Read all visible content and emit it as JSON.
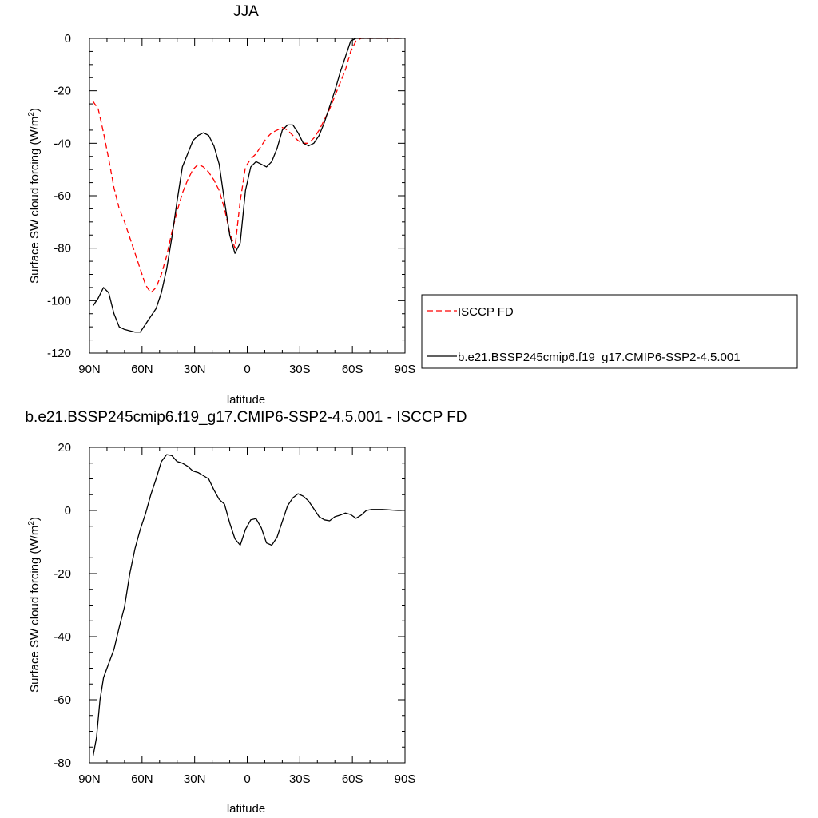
{
  "chart_data": [
    {
      "type": "line",
      "title": "JJA",
      "xlabel": "latitude",
      "ylabel": "Surface SW cloud forcing (W/m²)",
      "ylabel_main": "Surface SW cloud forcing (W/m",
      "ylabel_sup": "2",
      "ylabel_end": ")",
      "xlim": [
        90,
        -90
      ],
      "ylim": [
        -120,
        0
      ],
      "x_ticks": [
        90,
        60,
        30,
        0,
        -30,
        -60,
        -90
      ],
      "x_tick_labels": [
        "90N",
        "60N",
        "30N",
        "0",
        "30S",
        "60S",
        "90S"
      ],
      "y_ticks": [
        0,
        -20,
        -40,
        -60,
        -80,
        -100,
        -120
      ],
      "y_tick_labels": [
        "0",
        "-20",
        "-40",
        "-60",
        "-80",
        "-100",
        "-120"
      ],
      "legend_position": "right",
      "series": [
        {
          "name": "ISCCP FD",
          "color": "#ff0000",
          "dash": "dashed",
          "x": [
            88,
            85,
            82,
            79,
            76,
            73,
            70,
            67,
            64,
            61,
            58,
            55,
            52,
            49,
            46,
            43,
            40,
            37,
            34,
            31,
            28,
            25,
            22,
            19,
            16,
            13,
            10,
            7,
            4,
            1,
            -2,
            -5,
            -8,
            -11,
            -14,
            -17,
            -20,
            -23,
            -26,
            -29,
            -32,
            -35,
            -38,
            -41,
            -44,
            -47,
            -50,
            -53,
            -56,
            -59,
            -62,
            -65,
            -68,
            -71,
            -74,
            -77,
            -80,
            -83,
            -86,
            -88
          ],
          "y": [
            -24,
            -27,
            -36,
            -46,
            -57,
            -65,
            -70,
            -76,
            -82,
            -88,
            -94,
            -97,
            -95,
            -90,
            -83,
            -74,
            -66,
            -59,
            -54,
            -50,
            -48,
            -49,
            -51,
            -54,
            -58,
            -65,
            -74,
            -80,
            -62,
            -49,
            -46,
            -44,
            -41,
            -38,
            -36,
            -35,
            -34,
            -35,
            -37,
            -39,
            -40,
            -40,
            -38,
            -35,
            -31,
            -27,
            -22,
            -17,
            -12,
            -5,
            -1,
            0,
            0,
            0,
            0,
            0,
            0,
            0,
            0,
            0
          ]
        },
        {
          "name": "b.e21.BSSP245cmip6.f19_g17.CMIP6-SSP2-4.5.001",
          "color": "#000000",
          "dash": "solid",
          "x": [
            88,
            85,
            82,
            79,
            76,
            73,
            70,
            67,
            64,
            61,
            58,
            55,
            52,
            49,
            46,
            43,
            40,
            37,
            34,
            31,
            28,
            25,
            22,
            19,
            16,
            13,
            10,
            7,
            4,
            1,
            -2,
            -5,
            -8,
            -11,
            -14,
            -17,
            -20,
            -23,
            -26,
            -29,
            -32,
            -35,
            -38,
            -41,
            -44,
            -47,
            -50,
            -53,
            -56,
            -59,
            -62,
            -65,
            -68,
            -71,
            -74,
            -77,
            -80,
            -83,
            -86,
            -88
          ],
          "y": [
            -102,
            -99,
            -95,
            -97,
            -105,
            -110,
            -111,
            -111.5,
            -112,
            -112,
            -109,
            -106,
            -103,
            -97,
            -88,
            -76,
            -62,
            -49,
            -44,
            -39,
            -37,
            -36,
            -37,
            -41,
            -48,
            -62,
            -75,
            -82,
            -78,
            -58,
            -49,
            -47,
            -48,
            -49,
            -47,
            -42,
            -35,
            -33,
            -33,
            -36,
            -40,
            -41,
            -40,
            -37,
            -32,
            -26,
            -20,
            -13,
            -7,
            -1,
            0,
            0,
            0,
            0,
            0,
            0,
            0,
            0,
            0,
            0
          ]
        }
      ]
    },
    {
      "type": "line",
      "title": "b.e21.BSSP245cmip6.f19_g17.CMIP6-SSP2-4.5.001 - ISCCP FD",
      "xlabel": "latitude",
      "ylabel": "Surface SW cloud forcing (W/m²)",
      "ylabel_main": "Surface SW cloud forcing (W/m",
      "ylabel_sup": "2",
      "ylabel_end": ")",
      "xlim": [
        90,
        -90
      ],
      "ylim": [
        -80,
        20
      ],
      "x_ticks": [
        90,
        60,
        30,
        0,
        -30,
        -60,
        -90
      ],
      "x_tick_labels": [
        "90N",
        "60N",
        "30N",
        "0",
        "30S",
        "60S",
        "90S"
      ],
      "y_ticks": [
        20,
        0,
        -20,
        -40,
        -60,
        -80
      ],
      "y_tick_labels": [
        "20",
        "0",
        "-20",
        "-40",
        "-60",
        "-80"
      ],
      "series": [
        {
          "color": "#000000",
          "dash": "solid",
          "x": [
            88,
            86,
            84,
            82,
            79,
            76,
            73,
            70,
            67,
            64,
            61,
            58,
            55,
            52,
            49,
            46,
            43,
            40,
            37,
            34,
            31,
            28,
            25,
            22,
            19,
            16,
            13,
            10,
            7,
            4,
            1,
            -2,
            -5,
            -8,
            -11,
            -14,
            -17,
            -20,
            -23,
            -26,
            -29,
            -32,
            -35,
            -38,
            -41,
            -44,
            -47,
            -50,
            -53,
            -56,
            -59,
            -62,
            -65,
            -68,
            -71,
            -74,
            -77,
            -80,
            -83,
            -86,
            -88
          ],
          "y": [
            -78,
            -72,
            -60,
            -53,
            -48.5,
            -44,
            -37,
            -30.5,
            -20,
            -12,
            -6,
            -1,
            5,
            10,
            15.5,
            17.7,
            17.4,
            15.5,
            15,
            14,
            12.5,
            12,
            11,
            10,
            6.5,
            3.5,
            2,
            -4,
            -9,
            -11,
            -6,
            -3,
            -2.6,
            -5.5,
            -10.3,
            -11,
            -8.5,
            -3.5,
            1.5,
            4,
            5.3,
            4.5,
            3,
            0.5,
            -2,
            -3,
            -3.3,
            -2,
            -1.5,
            -0.8,
            -1.3,
            -2.5,
            -1.5,
            0,
            0.3,
            0.3,
            0.3,
            0.2,
            0.1,
            0,
            0
          ]
        }
      ]
    }
  ]
}
